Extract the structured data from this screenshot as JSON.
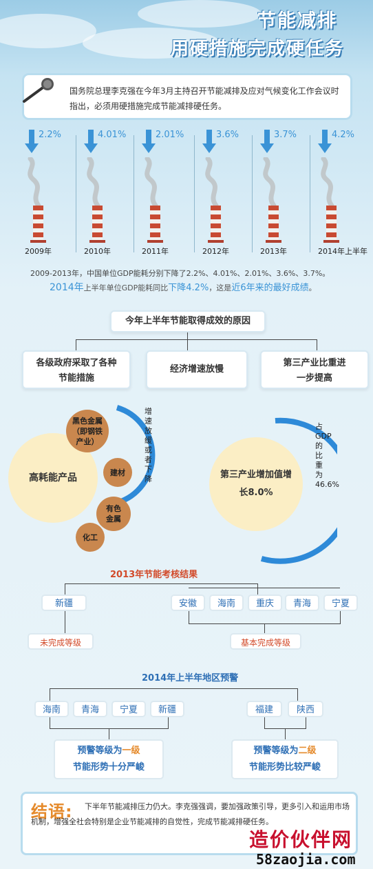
{
  "header": {
    "title_line1": "节能减排",
    "title_line2": "用硬措施完成硬任务"
  },
  "quote": {
    "text": "国务院总理李克强在今年3月主持召开节能减排及应对气候变化工作会议时指出，必须用硬措施完成节能减排硬任务。"
  },
  "years": [
    {
      "year": "2009年",
      "drop": "2.2%"
    },
    {
      "year": "2010年",
      "drop": "4.01%"
    },
    {
      "year": "2011年",
      "drop": "2.01%"
    },
    {
      "year": "2012年",
      "drop": "3.6%"
    },
    {
      "year": "2013年",
      "drop": "3.7%"
    },
    {
      "year": "2014年上半年",
      "drop": "4.2%"
    }
  ],
  "notes": {
    "line1": "2009-2013年，中国单位GDP能耗分别下降了2.2%、4.01%、2.01%、3.6%、3.7%。",
    "line2_a": "2014年",
    "line2_b": "上半年单位GDP能耗同比",
    "line2_c": "下降4.2%",
    "line2_d": "，这是",
    "line2_e": "近6年来的最好成绩",
    "line2_f": "。"
  },
  "reasons": {
    "title": "今年上半年节能取得成效的原因",
    "items": [
      "各级政府采取了各种节能措施",
      "经济增速放慢",
      "第三产业比重进一步提高"
    ]
  },
  "energy": {
    "big": "高耗能产品",
    "small": [
      "黑色金属（即钢铁产业）",
      "建材",
      "有色金属",
      "化工"
    ],
    "arc_label": "增速放缓或者下降"
  },
  "tertiary": {
    "center": "第三产业增加值增长8.0%",
    "arc_label": "占GDP的比重为46.6%"
  },
  "results2013": {
    "title": "2013年节能考核结果",
    "failed_regions": [
      "新疆"
    ],
    "failed_tag": "未完成等级",
    "basic_regions": [
      "安徽",
      "海南",
      "重庆",
      "青海",
      "宁夏"
    ],
    "basic_tag": "基本完成等级"
  },
  "warning2014": {
    "title": "2014年上半年地区预警",
    "group1": [
      "海南",
      "青海",
      "宁夏",
      "新疆"
    ],
    "group1_level_pre": "预警等级为",
    "group1_level": "一级",
    "group1_desc": "节能形势十分严峻",
    "group2": [
      "福建",
      "陕西"
    ],
    "group2_level_pre": "预警等级为",
    "group2_level": "二级",
    "group2_desc": "节能形势比较严峻"
  },
  "conclusion": {
    "label": "结语:",
    "text": "下半年节能减排压力仍大。李克强强调，要加强政策引导，更多引入和运用市场机制，增强全社会特别是企业节能减排的自觉性，完成节能减排硬任务。"
  },
  "watermark": {
    "name": "造价伙伴网",
    "url": "58zaojia.com"
  },
  "colors": {
    "accent_blue": "#3a93d6",
    "accent_red": "#d24a2a",
    "accent_orange": "#e58a2b",
    "chimney_red": "#c84a32"
  }
}
